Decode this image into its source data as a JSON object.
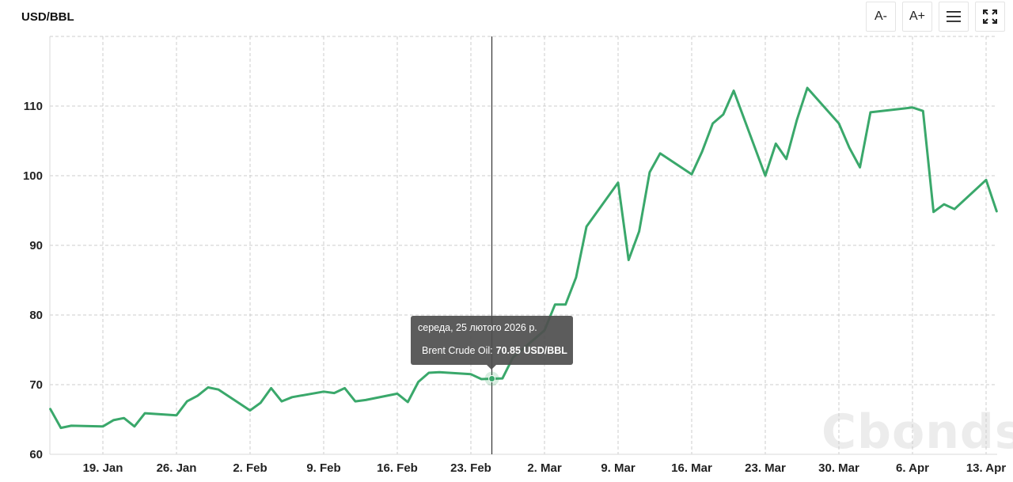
{
  "header": {
    "unit_label": "USD/BBL"
  },
  "toolbar": {
    "font_decrease_label": "A-",
    "font_increase_label": "A+",
    "menu_icon": "hamburger-menu-icon",
    "fullscreen_icon": "fullscreen-expand-icon"
  },
  "tooltip": {
    "date": "середа, 25 лютого 2026 р.",
    "series_name": "Brent Crude Oil:",
    "value": "70.85 USD/BBL"
  },
  "watermark": "Cbonds",
  "colors": {
    "line": "#3aa86b",
    "grid": "#cccccc",
    "tooltip_bg": "#505050",
    "crosshair": "#333333"
  },
  "chart_data": {
    "type": "line",
    "title": "",
    "xlabel": "",
    "ylabel": "USD/BBL",
    "ylim": [
      60,
      120
    ],
    "yticks": [
      60,
      70,
      80,
      90,
      100,
      110
    ],
    "xtick_labels": [
      "19. Jan",
      "26. Jan",
      "2. Feb",
      "9. Feb",
      "16. Feb",
      "23. Feb",
      "2. Mar",
      "9. Mar",
      "16. Mar",
      "23. Mar",
      "30. Mar",
      "6. Apr",
      "13. Apr"
    ],
    "grid": true,
    "legend": "none",
    "series": [
      {
        "name": "Brent Crude Oil",
        "x": [
          "2026-01-14",
          "2026-01-15",
          "2026-01-16",
          "2026-01-19",
          "2026-01-20",
          "2026-01-21",
          "2026-01-22",
          "2026-01-23",
          "2026-01-26",
          "2026-01-27",
          "2026-01-28",
          "2026-01-29",
          "2026-01-30",
          "2026-02-02",
          "2026-02-03",
          "2026-02-04",
          "2026-02-05",
          "2026-02-06",
          "2026-02-09",
          "2026-02-10",
          "2026-02-11",
          "2026-02-12",
          "2026-02-13",
          "2026-02-16",
          "2026-02-17",
          "2026-02-18",
          "2026-02-19",
          "2026-02-20",
          "2026-02-23",
          "2026-02-24",
          "2026-02-25",
          "2026-02-26",
          "2026-02-27",
          "2026-03-02",
          "2026-03-03",
          "2026-03-04",
          "2026-03-05",
          "2026-03-06",
          "2026-03-09",
          "2026-03-10",
          "2026-03-11",
          "2026-03-12",
          "2026-03-13",
          "2026-03-16",
          "2026-03-17",
          "2026-03-18",
          "2026-03-19",
          "2026-03-20",
          "2026-03-23",
          "2026-03-24",
          "2026-03-25",
          "2026-03-26",
          "2026-03-27",
          "2026-03-30",
          "2026-03-31",
          "2026-04-01",
          "2026-04-02",
          "2026-04-06",
          "2026-04-07",
          "2026-04-08",
          "2026-04-09",
          "2026-04-10",
          "2026-04-13",
          "2026-04-14"
        ],
        "values": [
          66.5,
          63.8,
          64.1,
          64.0,
          64.9,
          65.2,
          64.0,
          65.9,
          65.6,
          67.6,
          68.4,
          69.6,
          69.3,
          66.3,
          67.4,
          69.5,
          67.6,
          68.2,
          69.0,
          68.8,
          69.5,
          67.6,
          67.8,
          68.7,
          67.5,
          70.4,
          71.7,
          71.8,
          71.5,
          70.8,
          70.85,
          70.9,
          73.9,
          77.8,
          81.5,
          81.5,
          85.4,
          92.7,
          99.0,
          87.9,
          92.0,
          100.5,
          103.2,
          100.2,
          103.5,
          107.5,
          108.8,
          112.2,
          100.0,
          104.6,
          102.4,
          108.0,
          112.6,
          107.5,
          104.0,
          101.2,
          109.1,
          109.8,
          109.3,
          94.8,
          95.9,
          95.2,
          99.4,
          94.9
        ]
      }
    ],
    "highlighted_point": {
      "x": "2026-02-25",
      "value": 70.85
    }
  }
}
